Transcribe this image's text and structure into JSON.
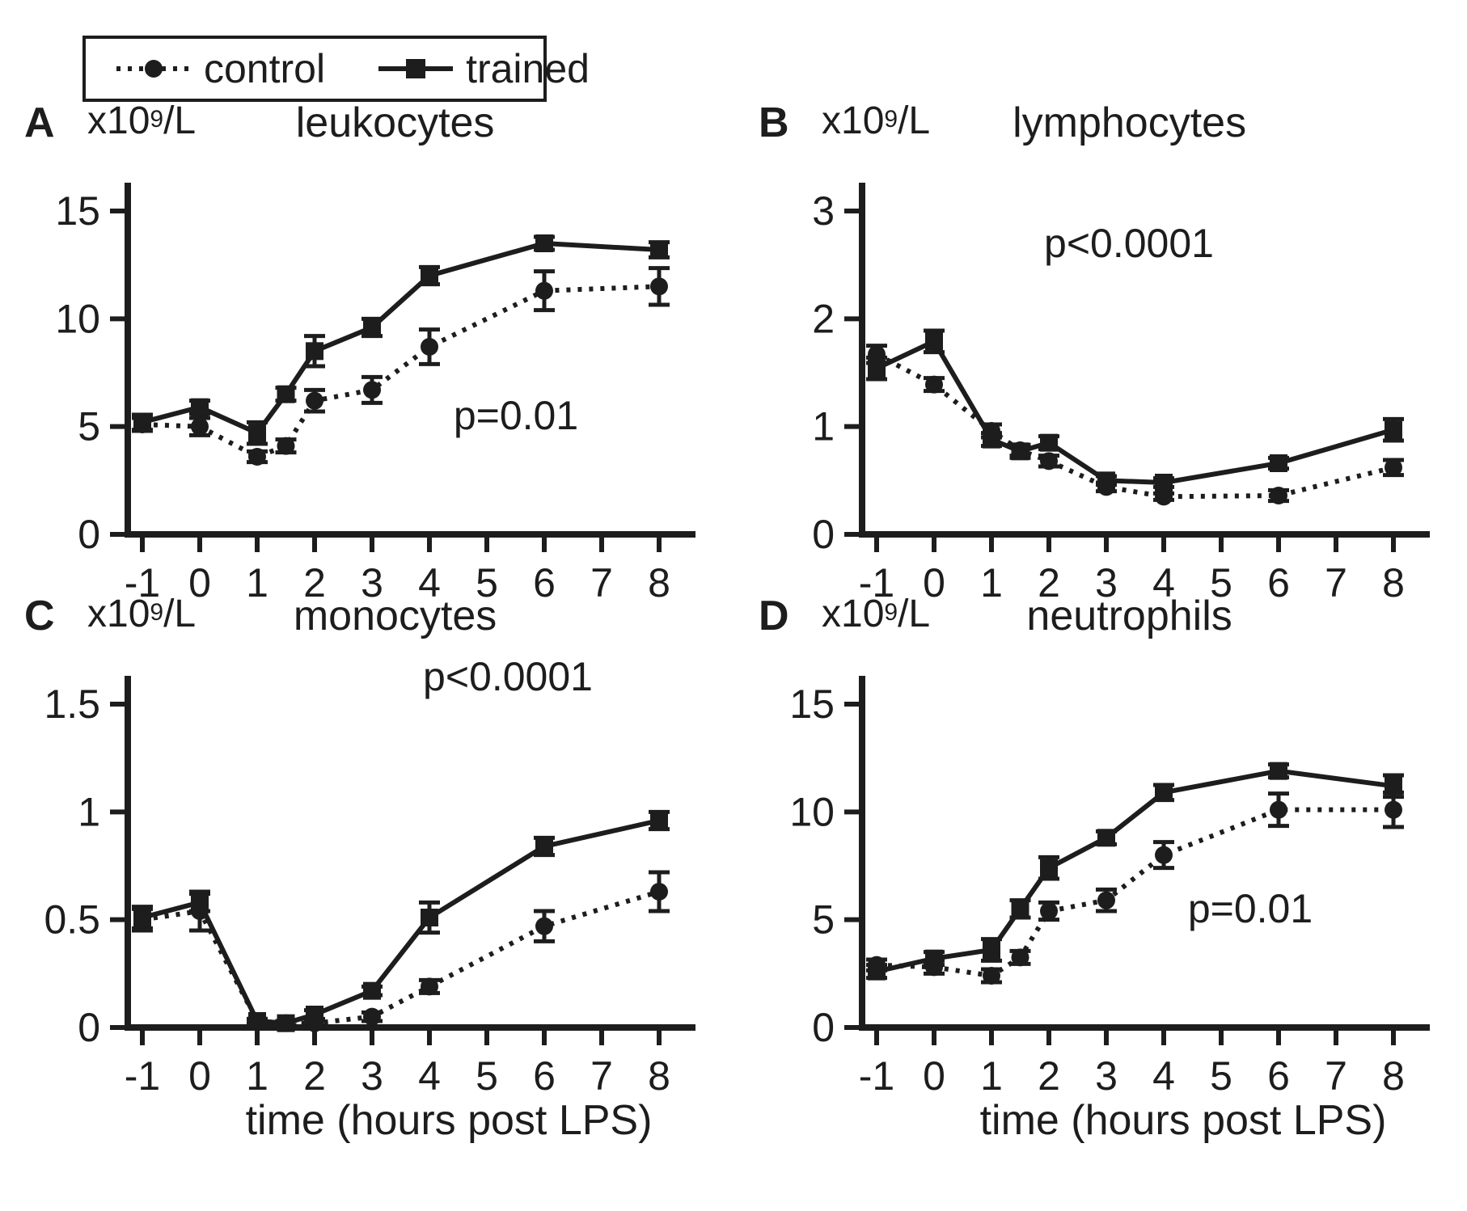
{
  "figure": {
    "background": "#ffffff",
    "ink_color": "#1d1d1d"
  },
  "legend": {
    "control_label": "control",
    "trained_label": "trained"
  },
  "x_axis_title": "time (hours post LPS)",
  "chart_data": {
    "type": "line",
    "x": [
      -1,
      0,
      1,
      1.5,
      2,
      3,
      4,
      6,
      8
    ],
    "x_tick_values": [
      -1,
      0,
      1,
      2,
      3,
      4,
      5,
      6,
      7,
      8
    ],
    "x_tick_labels": [
      "-1",
      "0",
      "1",
      "2",
      "3",
      "4",
      "5",
      "6",
      "7",
      "8"
    ],
    "series_styles": {
      "control": {
        "line": "dotted",
        "marker": "circle"
      },
      "trained": {
        "line": "solid",
        "marker": "square"
      }
    },
    "panels": [
      {
        "letter": "A",
        "unit_base": "x10",
        "unit_exponent": "9",
        "unit_denominator": "/L",
        "title": "leukocytes",
        "p_label": "p=0.01",
        "ylim": [
          0,
          15
        ],
        "y_ticks": [
          0,
          5,
          10,
          15
        ],
        "y_tick_labels": [
          "0",
          "5",
          "10",
          "15"
        ],
        "series": [
          {
            "name": "control",
            "values": [
              5.1,
              5.0,
              3.6,
              4.1,
              6.2,
              6.7,
              8.7,
              11.3,
              11.5
            ],
            "errors": [
              0.3,
              0.4,
              0.25,
              0.3,
              0.5,
              0.6,
              0.8,
              0.9,
              0.85
            ]
          },
          {
            "name": "trained",
            "values": [
              5.2,
              5.9,
              4.7,
              6.5,
              8.5,
              9.6,
              12.0,
              13.5,
              13.2
            ],
            "errors": [
              0.35,
              0.3,
              0.5,
              0.3,
              0.7,
              0.4,
              0.4,
              0.3,
              0.35
            ]
          }
        ]
      },
      {
        "letter": "B",
        "unit_base": "x10",
        "unit_exponent": "9",
        "unit_denominator": "/L",
        "title": "lymphocytes",
        "p_label": "p<0.0001",
        "ylim": [
          0,
          3
        ],
        "y_ticks": [
          0,
          1,
          2,
          3
        ],
        "y_tick_labels": [
          "0",
          "1",
          "2",
          "3"
        ],
        "series": [
          {
            "name": "control",
            "values": [
              1.67,
              1.39,
              0.96,
              0.78,
              0.68,
              0.44,
              0.35,
              0.36,
              0.62
            ],
            "errors": [
              0.08,
              0.06,
              0.06,
              0.05,
              0.05,
              0.04,
              0.03,
              0.05,
              0.07
            ]
          },
          {
            "name": "trained",
            "values": [
              1.54,
              1.79,
              0.88,
              0.77,
              0.85,
              0.5,
              0.48,
              0.66,
              0.97
            ],
            "errors": [
              0.1,
              0.1,
              0.06,
              0.06,
              0.06,
              0.04,
              0.04,
              0.05,
              0.1
            ]
          }
        ]
      },
      {
        "letter": "C",
        "unit_base": "x10",
        "unit_exponent": "9",
        "unit_denominator": "/L",
        "title": "monocytes",
        "p_label": "p<0.0001",
        "ylim": [
          0,
          1.5
        ],
        "y_ticks": [
          0,
          0.5,
          1,
          1.5
        ],
        "y_tick_labels": [
          "0",
          "0.5",
          "1",
          "1.5"
        ],
        "series": [
          {
            "name": "control",
            "values": [
              0.5,
              0.54,
              0.03,
              0.02,
              0.02,
              0.05,
              0.19,
              0.47,
              0.63
            ],
            "errors": [
              0.05,
              0.09,
              0.01,
              0.01,
              0.01,
              0.02,
              0.03,
              0.07,
              0.09
            ]
          },
          {
            "name": "trained",
            "values": [
              0.51,
              0.58,
              0.03,
              0.02,
              0.06,
              0.17,
              0.51,
              0.84,
              0.96
            ],
            "errors": [
              0.05,
              0.04,
              0.01,
              0.01,
              0.02,
              0.02,
              0.07,
              0.04,
              0.04
            ]
          }
        ]
      },
      {
        "letter": "D",
        "unit_base": "x10",
        "unit_exponent": "9",
        "unit_denominator": "/L",
        "title": "neutrophils",
        "p_label": "p=0.01",
        "ylim": [
          0,
          15
        ],
        "y_ticks": [
          0,
          5,
          10,
          15
        ],
        "y_tick_labels": [
          "0",
          "5",
          "10",
          "15"
        ],
        "series": [
          {
            "name": "control",
            "values": [
              2.9,
              2.8,
              2.4,
              3.25,
              5.4,
              5.9,
              8.0,
              10.1,
              10.1
            ],
            "errors": [
              0.25,
              0.3,
              0.3,
              0.3,
              0.4,
              0.5,
              0.6,
              0.75,
              0.8
            ]
          },
          {
            "name": "trained",
            "values": [
              2.6,
              3.2,
              3.6,
              5.5,
              7.4,
              8.8,
              10.9,
              11.9,
              11.2
            ],
            "errors": [
              0.3,
              0.3,
              0.5,
              0.4,
              0.5,
              0.3,
              0.35,
              0.3,
              0.5
            ]
          }
        ]
      }
    ]
  }
}
